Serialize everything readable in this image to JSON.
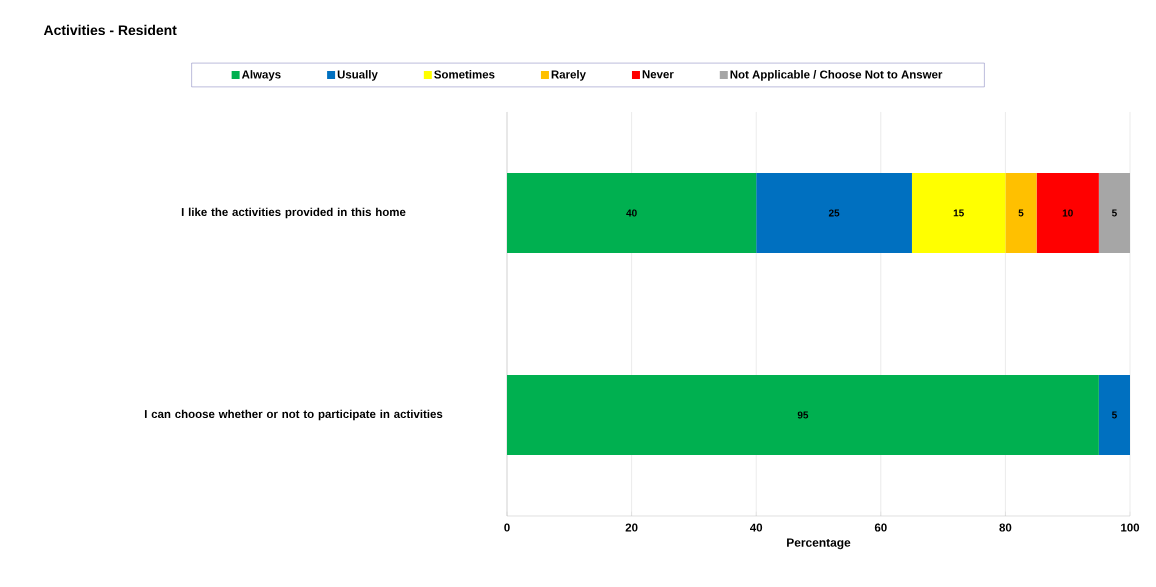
{
  "chart_data": {
    "type": "bar",
    "orientation": "horizontal",
    "stacked": true,
    "title": "Activities - Resident",
    "xlabel": "Percentage",
    "categories": [
      "I like the activities provided in this home",
      "I can choose whether or not to participate in activities"
    ],
    "series": [
      {
        "name": "Always",
        "color": "#00b050",
        "values": [
          40,
          95
        ]
      },
      {
        "name": "Usually",
        "color": "#0070c0",
        "values": [
          25,
          5
        ]
      },
      {
        "name": "Sometimes",
        "color": "#ffff00",
        "values": [
          15,
          null
        ]
      },
      {
        "name": "Rarely",
        "color": "#ffc000",
        "values": [
          5,
          null
        ]
      },
      {
        "name": "Never",
        "color": "#ff0000",
        "values": [
          10,
          null
        ]
      },
      {
        "name": "Not Applicable / Choose Not to Answer",
        "color": "#a6a6a6",
        "values": [
          5,
          null
        ]
      }
    ],
    "xlim": [
      0,
      100
    ],
    "xticks": [
      0,
      20,
      40,
      60,
      80,
      100
    ],
    "grid": "x",
    "legend": "top",
    "data_labels": true
  }
}
